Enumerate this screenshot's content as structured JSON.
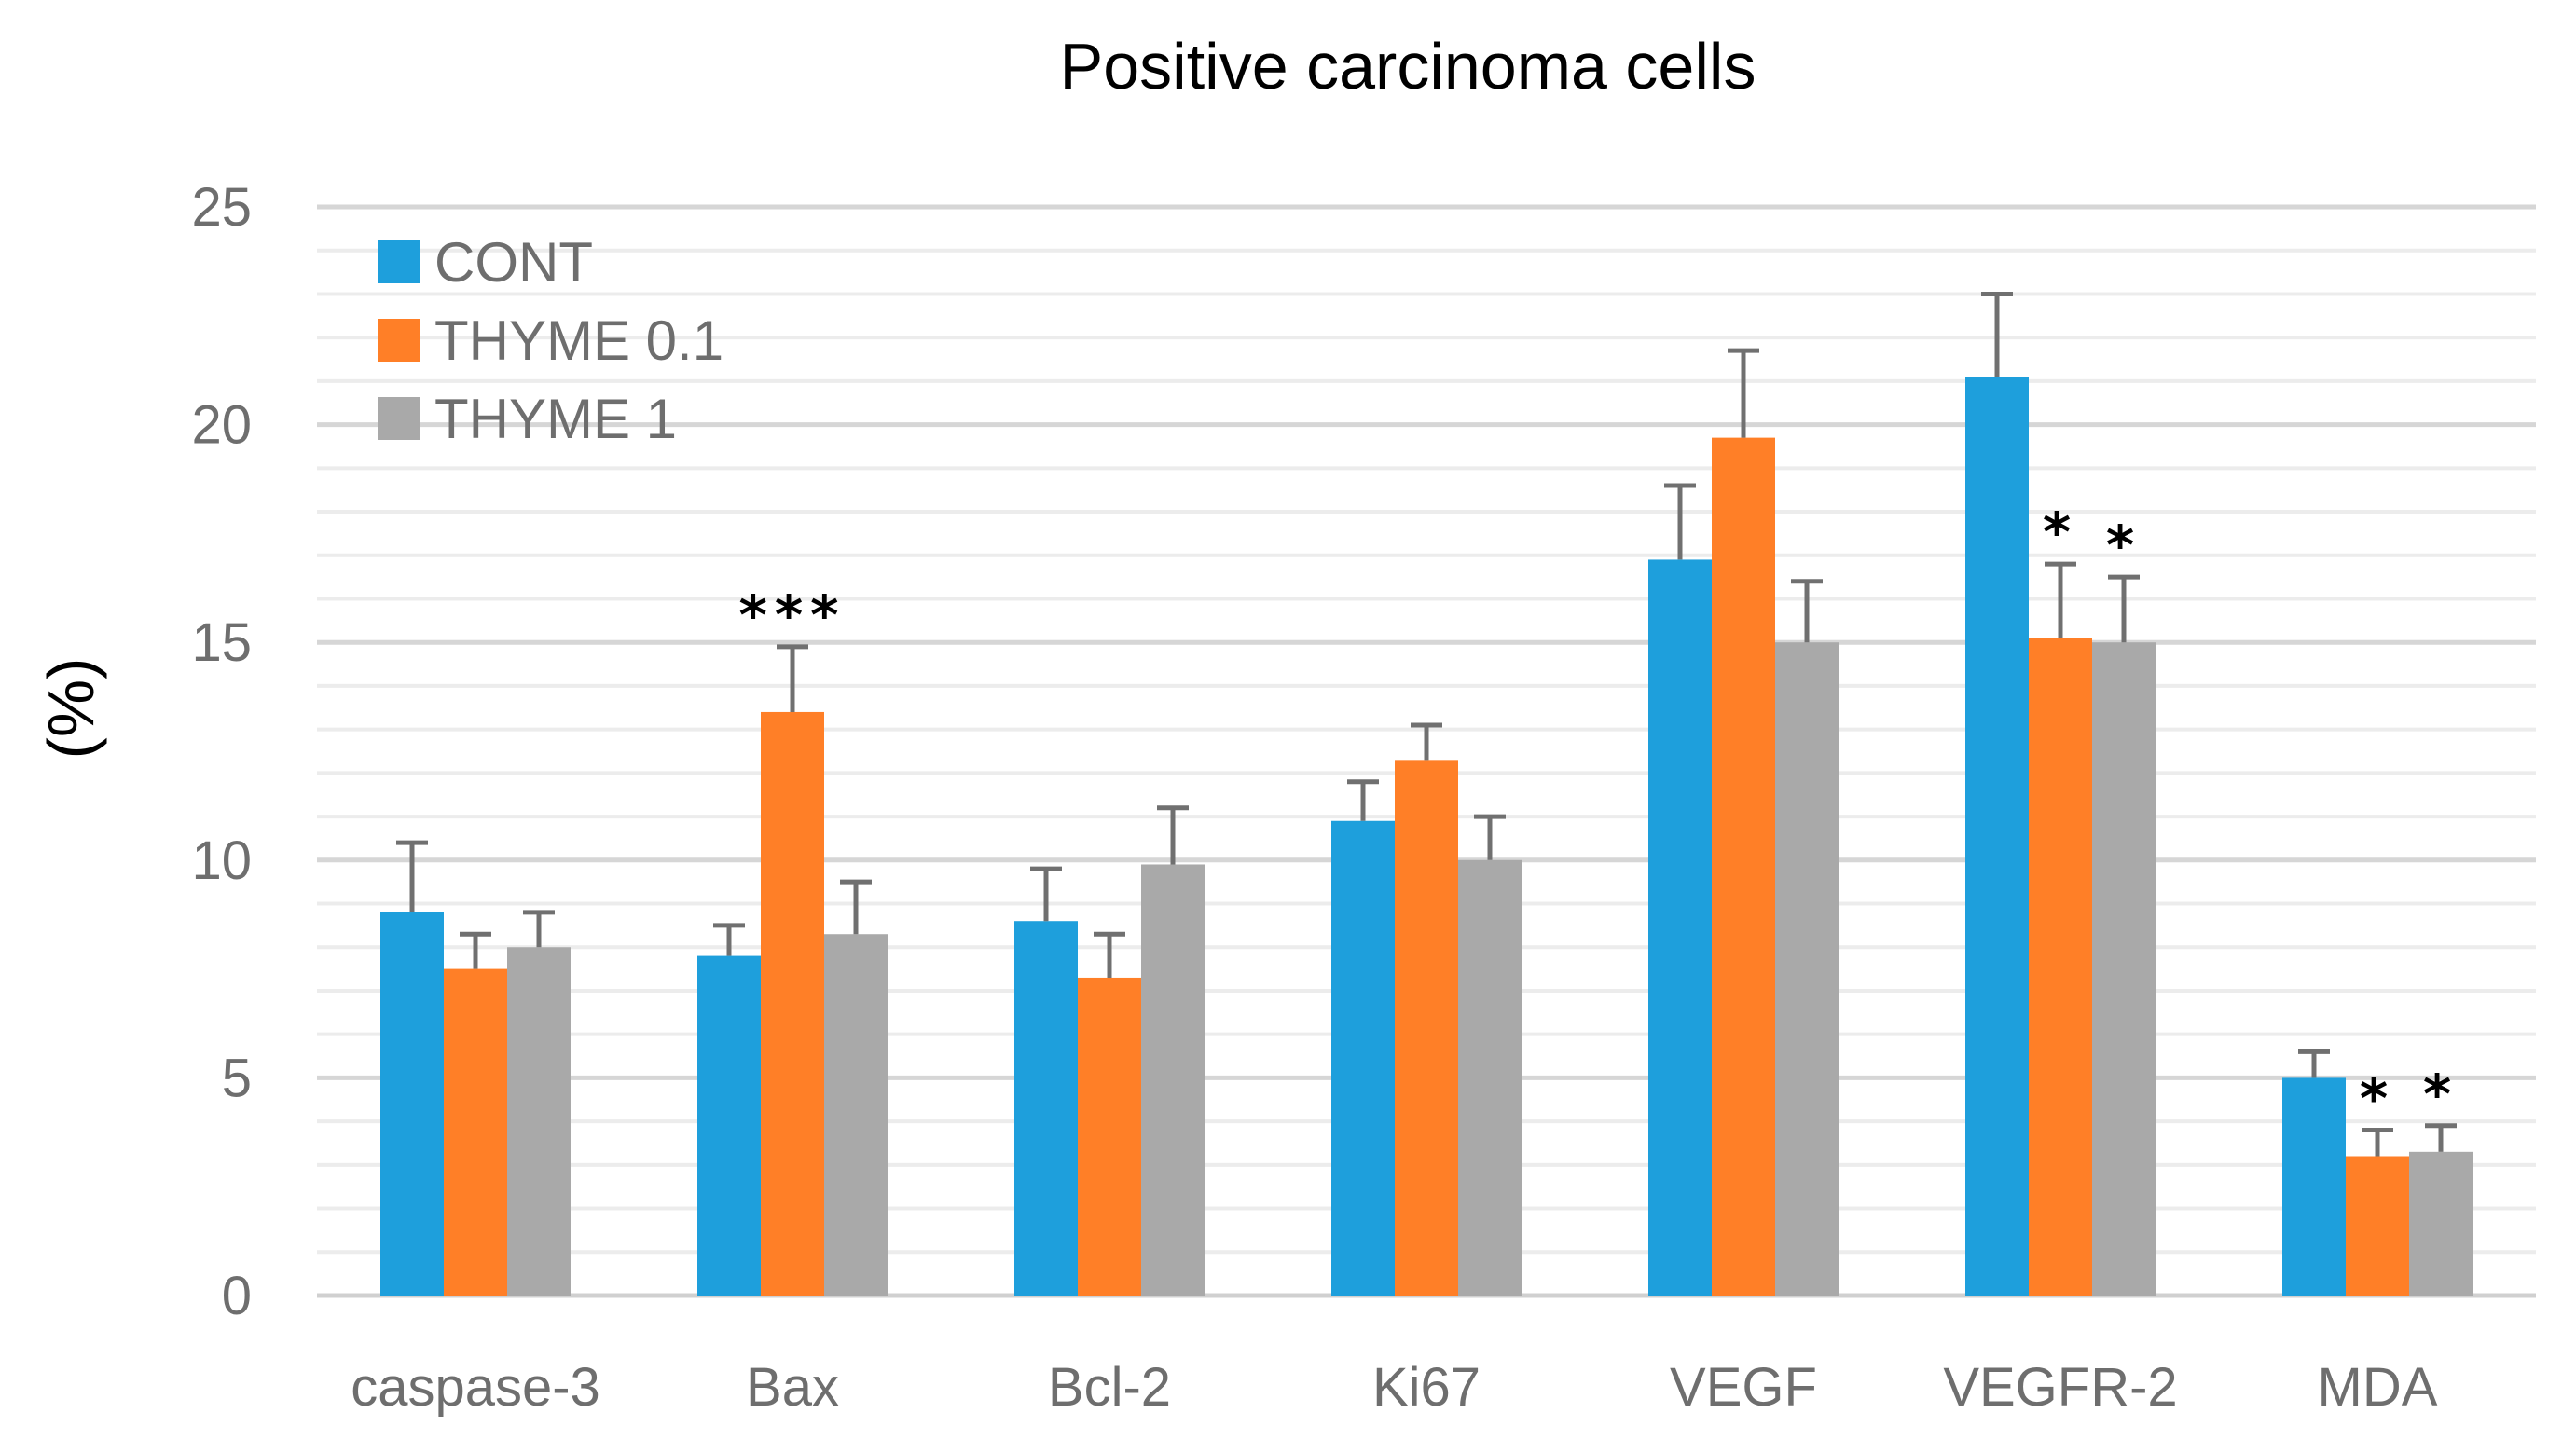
{
  "chart_data": {
    "type": "bar",
    "title": "Positive carcinoma cells",
    "xlabel": "",
    "ylabel": "(%)",
    "ylim": [
      0,
      25
    ],
    "yticks": [
      0,
      5,
      10,
      15,
      20,
      25
    ],
    "grid": true,
    "legend_position": "top-left",
    "categories": [
      "caspase-3",
      "Bax",
      "Bcl-2",
      "Ki67",
      "VEGF",
      "VEGFR-2",
      "MDA"
    ],
    "series": [
      {
        "name": "CONT",
        "color": "#1e9fdc",
        "values": [
          8.8,
          7.8,
          8.6,
          10.9,
          16.9,
          21.1,
          5.0
        ],
        "errors": [
          1.6,
          0.7,
          1.2,
          0.9,
          1.7,
          1.9,
          0.6
        ],
        "significance": [
          "",
          "",
          "",
          "",
          "",
          "",
          ""
        ]
      },
      {
        "name": "THYME 0.1",
        "color": "#ff7f27",
        "values": [
          7.5,
          13.4,
          7.3,
          12.3,
          19.7,
          15.1,
          3.2
        ],
        "errors": [
          0.8,
          1.5,
          1.0,
          0.8,
          2.0,
          1.7,
          0.6
        ],
        "significance": [
          "",
          "***",
          "",
          "",
          "",
          "*",
          "*"
        ]
      },
      {
        "name": "THYME 1",
        "color": "#a9a9a9",
        "values": [
          8.0,
          8.3,
          9.9,
          10.0,
          15.0,
          15.0,
          3.3
        ],
        "errors": [
          0.8,
          1.2,
          1.3,
          1.0,
          1.4,
          1.5,
          0.6
        ],
        "significance": [
          "",
          "",
          "",
          "",
          "",
          "*",
          "*"
        ]
      }
    ]
  }
}
